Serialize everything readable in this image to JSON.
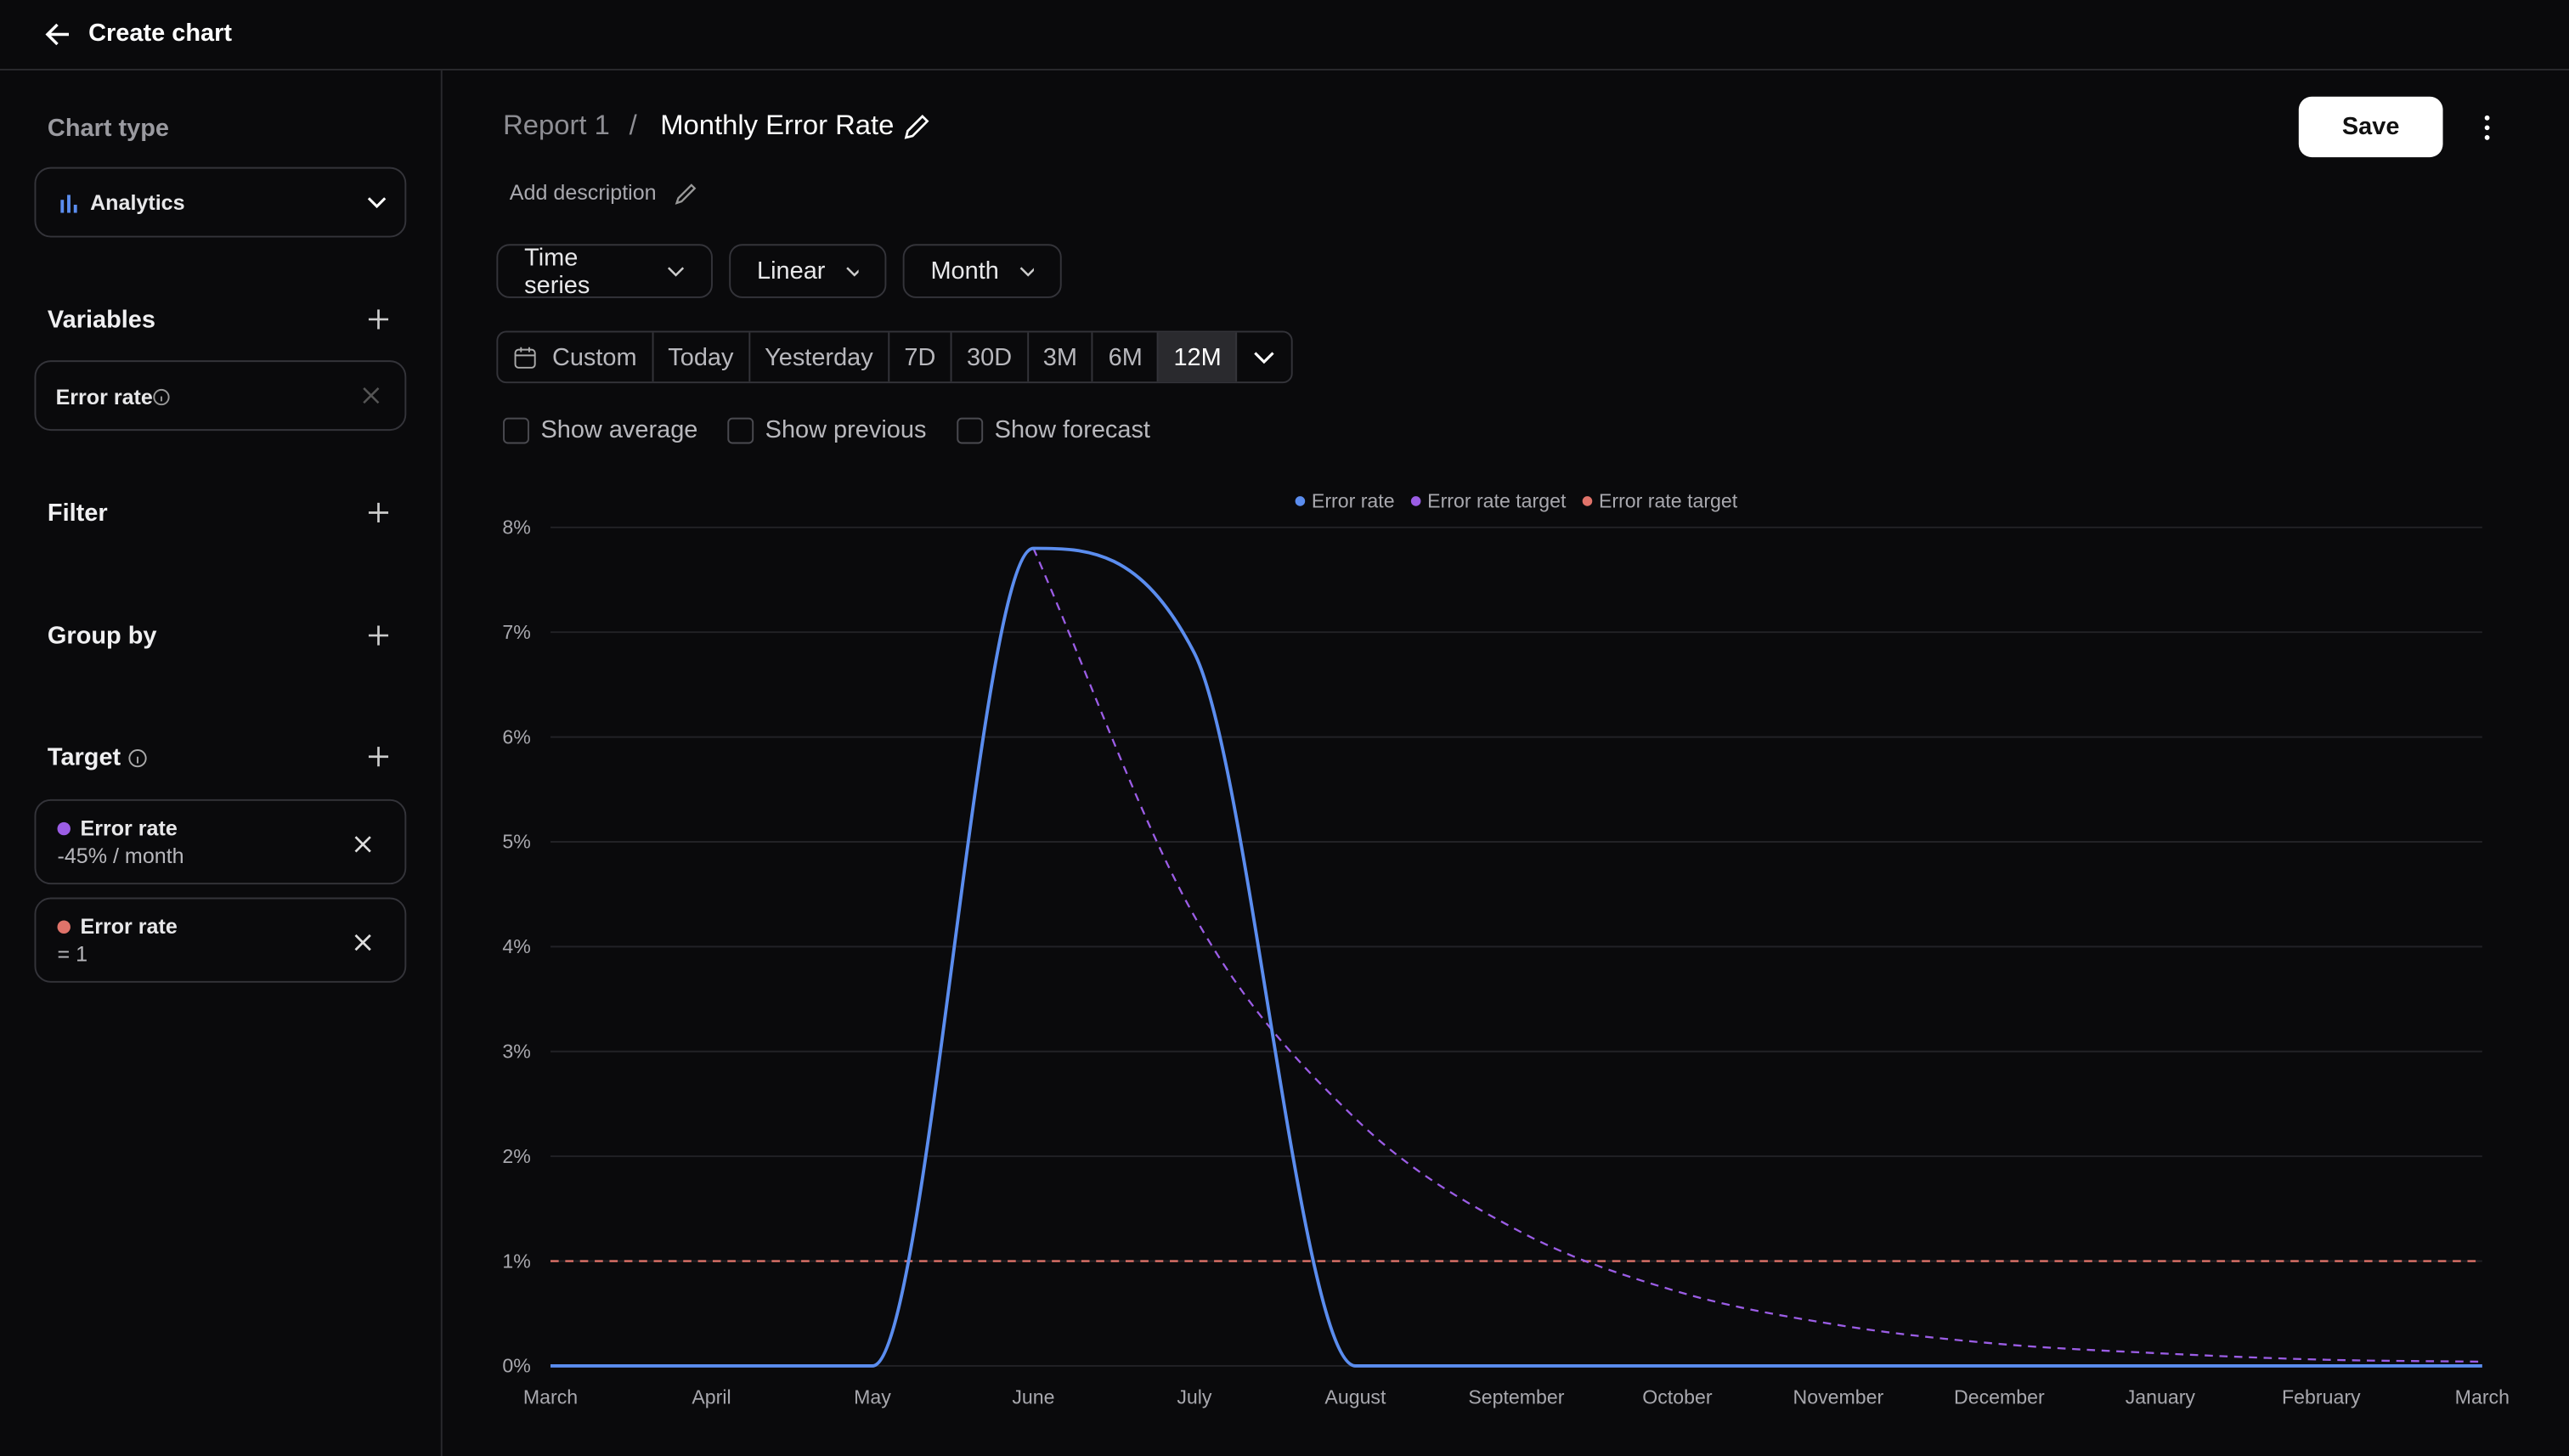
{
  "header": {
    "title": "Create chart"
  },
  "sidebar": {
    "chart_type_label": "Chart type",
    "chart_type": "Analytics",
    "variables_label": "Variables",
    "variables": [
      "Error rate"
    ],
    "filter_label": "Filter",
    "group_by_label": "Group by",
    "target_label": "Target",
    "targets": [
      {
        "name": "Error rate",
        "rule": "-45% / month",
        "color": "#9b5de5"
      },
      {
        "name": "Error rate",
        "rule": "= 1",
        "color": "#e0736a"
      }
    ]
  },
  "breadcrumb": {
    "parent": "Report 1",
    "separator": "/",
    "title": "Monthly Error Rate"
  },
  "description_prompt": "Add description",
  "save": "Save",
  "dropdowns": [
    "Time series",
    "Linear",
    "Month"
  ],
  "ranges": [
    "Custom",
    "Today",
    "Yesterday",
    "7D",
    "30D",
    "3M",
    "6M",
    "12M"
  ],
  "selected_range": 7,
  "toggles": [
    "Show average",
    "Show previous",
    "Show forecast"
  ],
  "chart_data": {
    "type": "line",
    "legend": "top",
    "categories": [
      "March",
      "April",
      "May",
      "June",
      "July",
      "August",
      "September",
      "October",
      "November",
      "December",
      "January",
      "February",
      "March"
    ],
    "series": [
      {
        "name": "Error rate",
        "color": "#5b8def",
        "dashed": false,
        "values": [
          0,
          0,
          0,
          7.8,
          6.8,
          0,
          0,
          0,
          0,
          0,
          0,
          0,
          0
        ]
      },
      {
        "name": "Error rate target",
        "color": "#9b5de5",
        "dashed": true,
        "values": [
          null,
          null,
          null,
          7.8,
          4.29,
          2.36,
          1.3,
          0.71,
          0.39,
          0.21,
          0.12,
          0.06,
          0.04
        ]
      },
      {
        "name": "Error rate target",
        "color": "#e0736a",
        "dashed": true,
        "values": [
          1,
          1,
          1,
          1,
          1,
          1,
          1,
          1,
          1,
          1,
          1,
          1,
          1
        ]
      }
    ],
    "ylim": [
      0,
      8
    ],
    "yticks": [
      {
        "value": 0,
        "label": "0%"
      },
      {
        "value": 1,
        "label": "1%"
      },
      {
        "value": 2,
        "label": "2%"
      },
      {
        "value": 3,
        "label": "3%"
      },
      {
        "value": 4,
        "label": "4%"
      },
      {
        "value": 5,
        "label": "5%"
      },
      {
        "value": 6,
        "label": "6%"
      },
      {
        "value": 7,
        "label": "7%"
      },
      {
        "value": 8,
        "label": "8%"
      }
    ],
    "grid": true
  }
}
